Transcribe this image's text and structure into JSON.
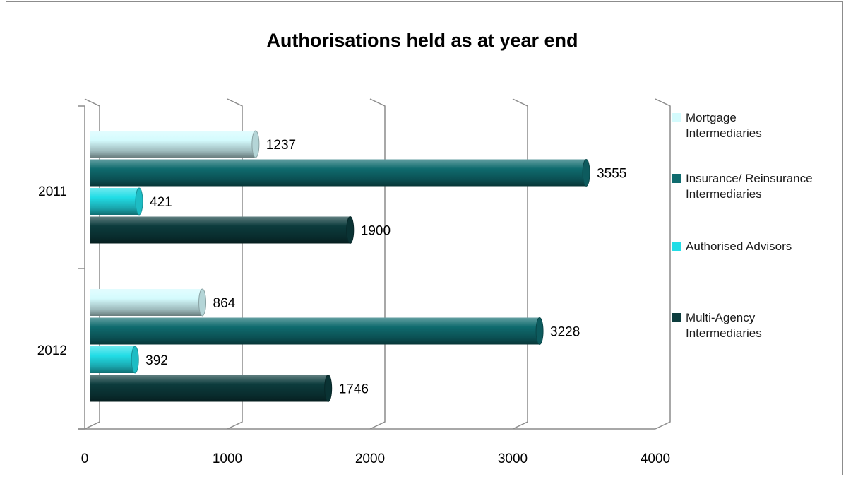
{
  "chart_data": {
    "type": "bar",
    "orientation": "horizontal",
    "title": "Authorisations held as at year end",
    "categories": [
      "2011",
      "2012"
    ],
    "series": [
      {
        "name": "Mortgage Intermediaries",
        "legend_lines": [
          "Mortgage",
          "Intermediaries"
        ],
        "color": "#d4fbfd",
        "values": [
          1237,
          864
        ]
      },
      {
        "name": "Insurance/ Reinsurance Intermediaries",
        "legend_lines": [
          "Insurance/ Reinsurance",
          "Intermediaries"
        ],
        "color": "#0f6b6e",
        "values": [
          3555,
          3228
        ]
      },
      {
        "name": "Authorised Advisors",
        "legend_lines": [
          "Authorised Advisors"
        ],
        "color": "#22dde6",
        "values": [
          421,
          392
        ]
      },
      {
        "name": "Multi-Agency Intermediaries",
        "legend_lines": [
          "Multi-Agency",
          "Intermediaries"
        ],
        "color": "#0c3c3d",
        "values": [
          1900,
          1746
        ]
      }
    ],
    "xlim": [
      0,
      4000
    ],
    "xticks": [
      "0",
      "1000",
      "2000",
      "3000",
      "4000"
    ],
    "grid": true,
    "legend_position": "right"
  }
}
